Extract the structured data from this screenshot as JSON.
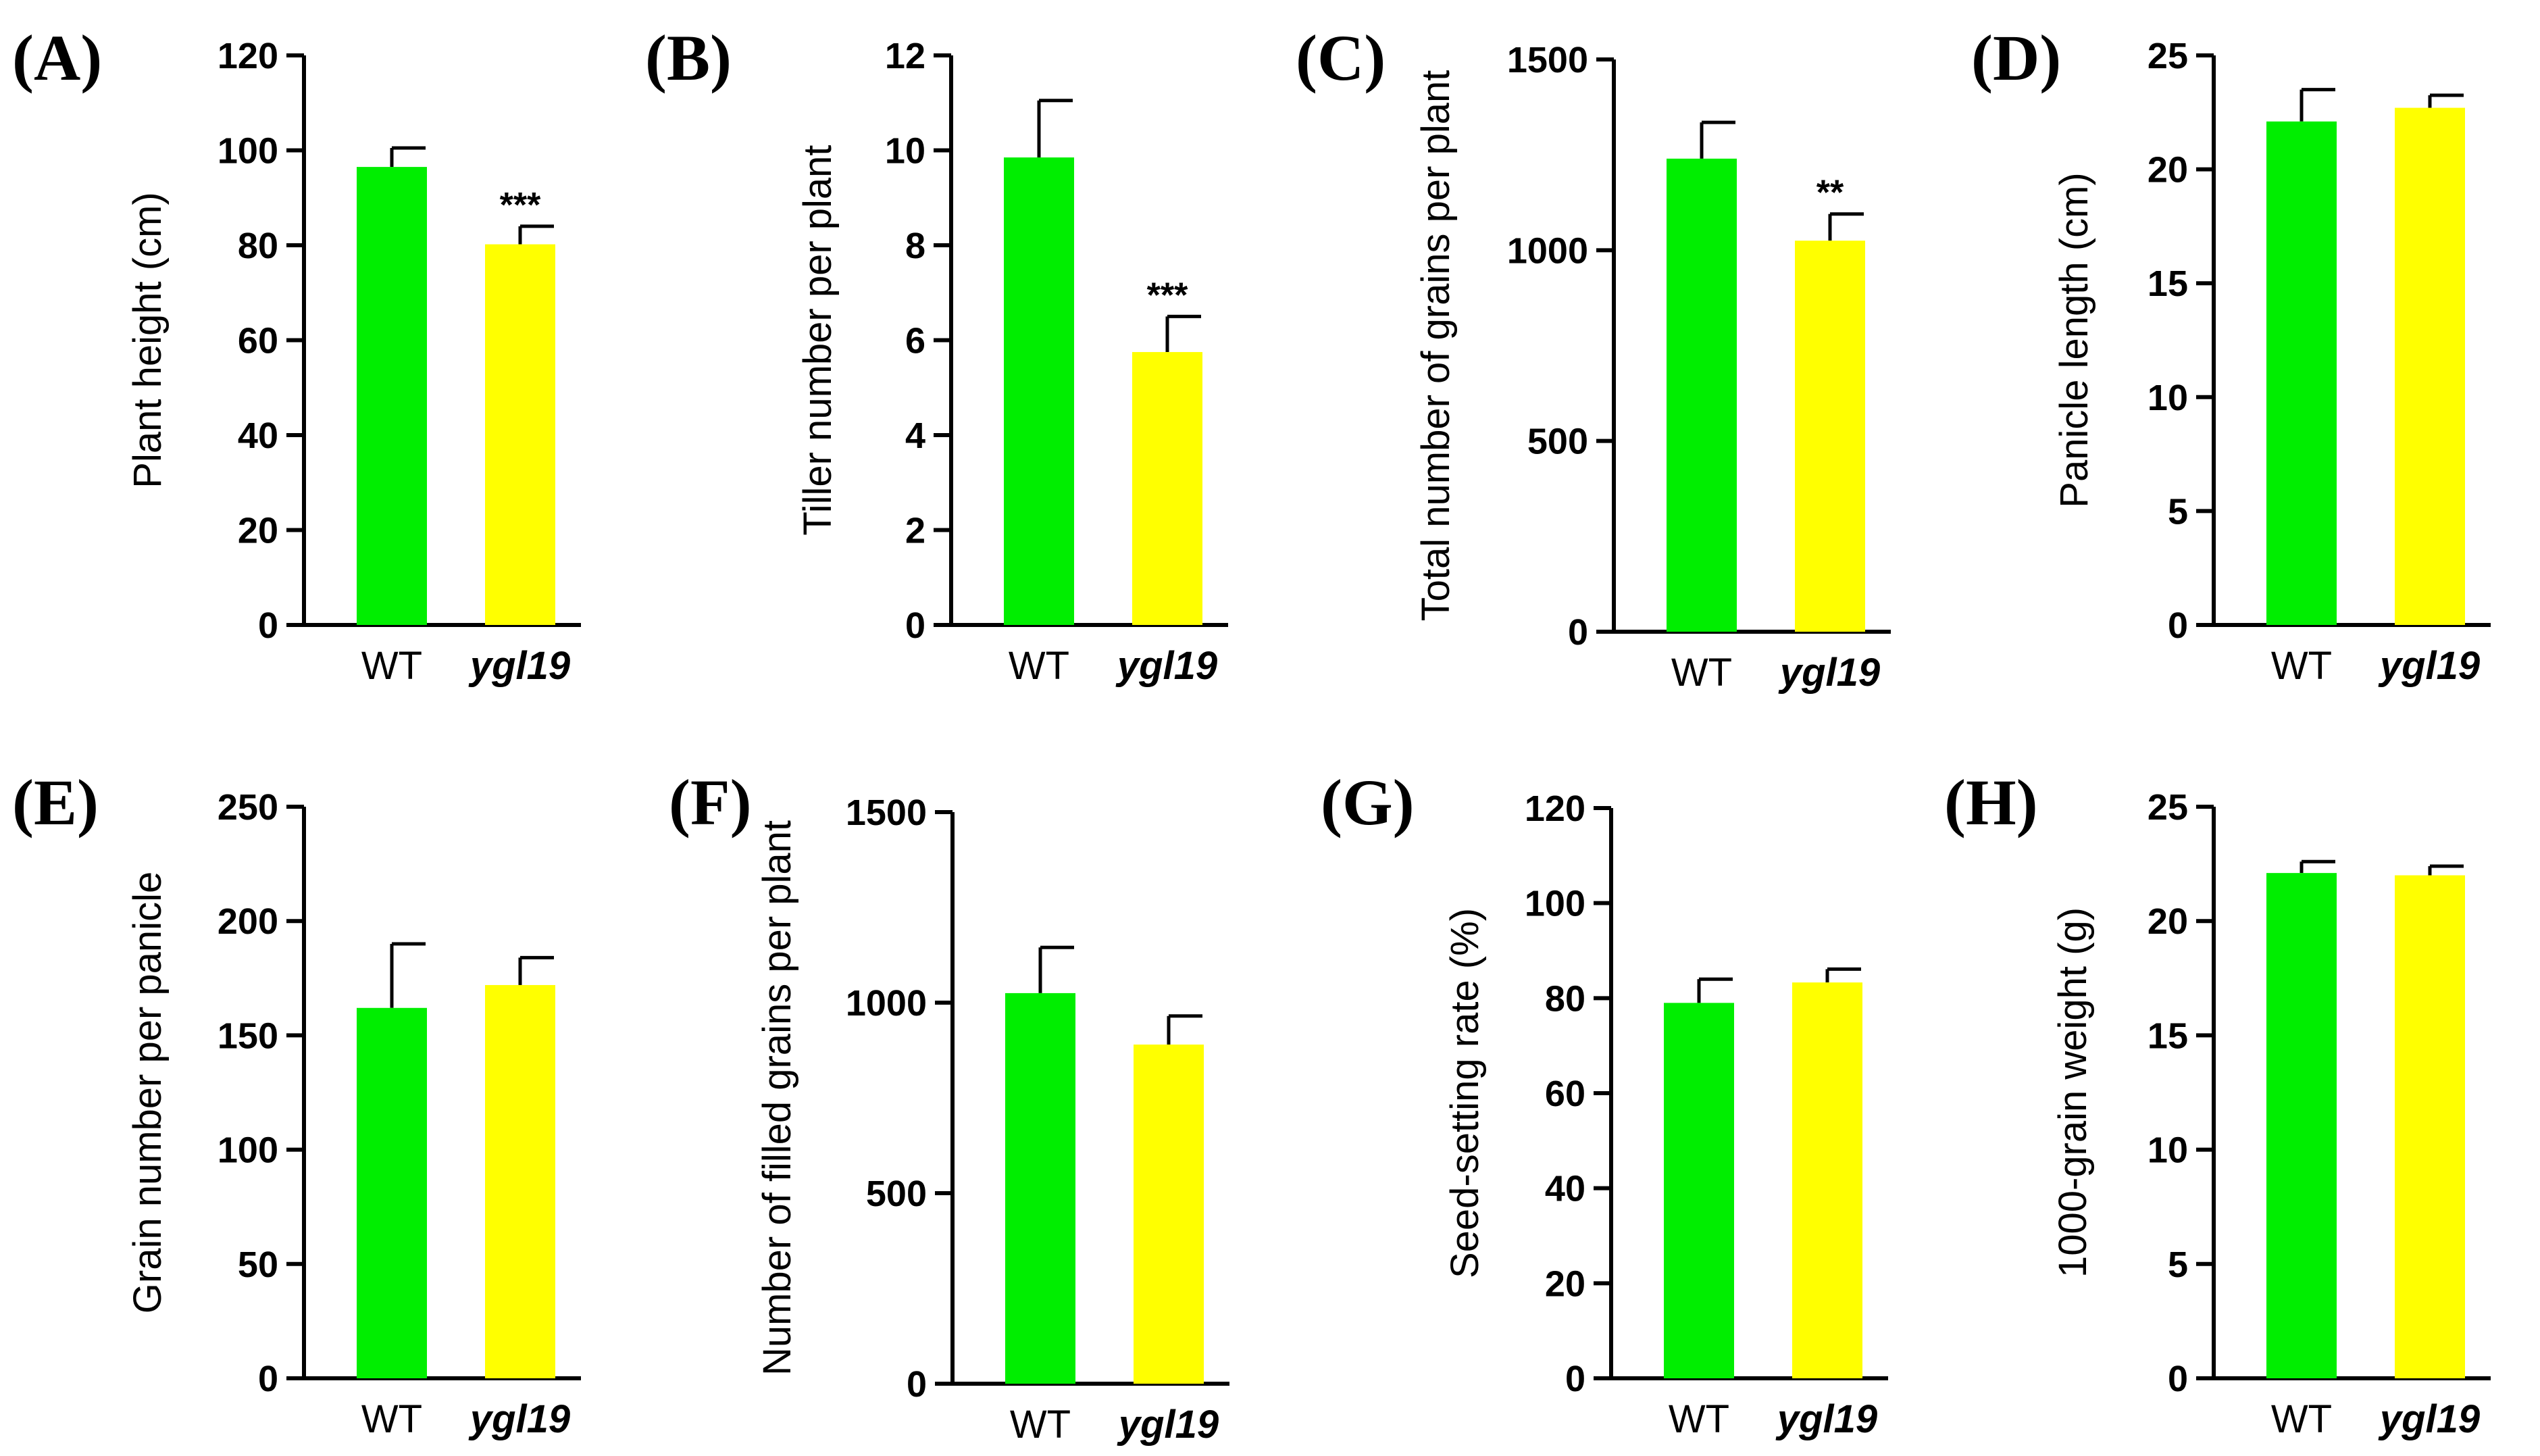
{
  "colors": {
    "wt": "#00ee00",
    "mutant": "#ffff00",
    "axis": "#000000"
  },
  "chart_data": [
    {
      "panel": "(A)",
      "type": "bar",
      "categories": [
        "WT",
        "ygl19"
      ],
      "values": [
        96.5,
        80.2
      ],
      "errors": [
        4,
        3.8
      ],
      "ylabel": "Plant height (cm)",
      "ylim": [
        0,
        120
      ],
      "yticks": [
        "0",
        "20",
        "40",
        "60",
        "80",
        "100",
        "120"
      ],
      "significance": [
        "",
        "***"
      ]
    },
    {
      "panel": "(B)",
      "type": "bar",
      "categories": [
        "WT",
        "ygl19"
      ],
      "values": [
        9.85,
        5.75
      ],
      "errors": [
        1.2,
        0.75
      ],
      "ylabel": "Tiller number per plant",
      "ylim": [
        0,
        12
      ],
      "yticks": [
        "0",
        "2",
        "4",
        "6",
        "8",
        "10",
        "12"
      ],
      "significance": [
        "",
        "***"
      ]
    },
    {
      "panel": "(C)",
      "type": "bar",
      "categories": [
        "WT",
        "ygl19"
      ],
      "values": [
        1240,
        1025
      ],
      "errors": [
        95,
        70
      ],
      "ylabel": "Total number of grains per plant",
      "ylim": [
        0,
        1500
      ],
      "yticks": [
        "0",
        "500",
        "1000",
        "1500"
      ],
      "significance": [
        "",
        "**"
      ]
    },
    {
      "panel": "(D)",
      "type": "bar",
      "categories": [
        "WT",
        "ygl19"
      ],
      "values": [
        22.1,
        22.7
      ],
      "errors": [
        1.4,
        0.55
      ],
      "ylabel": "Panicle length (cm)",
      "ylim": [
        0,
        25
      ],
      "yticks": [
        "0",
        "5",
        "10",
        "15",
        "20",
        "25"
      ],
      "significance": [
        "",
        ""
      ]
    },
    {
      "panel": "(E)",
      "type": "bar",
      "categories": [
        "WT",
        "ygl19"
      ],
      "values": [
        162,
        172
      ],
      "errors": [
        28,
        12
      ],
      "ylabel": "Grain number per panicle",
      "ylim": [
        0,
        250
      ],
      "yticks": [
        "0",
        "50",
        "100",
        "150",
        "200",
        "250"
      ],
      "significance": [
        "",
        ""
      ]
    },
    {
      "panel": "(F)",
      "type": "bar",
      "categories": [
        "WT",
        "ygl19"
      ],
      "values": [
        1025,
        890
      ],
      "errors": [
        120,
        75
      ],
      "ylabel": "Number of filled grains per plant",
      "ylim": [
        0,
        1500
      ],
      "yticks": [
        "0",
        "500",
        "1000",
        "1500"
      ],
      "significance": [
        "",
        ""
      ]
    },
    {
      "panel": "(G)",
      "type": "bar",
      "categories": [
        "WT",
        "ygl19"
      ],
      "values": [
        79,
        83.3
      ],
      "errors": [
        5,
        2.8
      ],
      "ylabel": "Seed-setting rate (%)",
      "ylim": [
        0,
        120
      ],
      "yticks": [
        "0",
        "20",
        "40",
        "60",
        "80",
        "100",
        "120"
      ],
      "significance": [
        "",
        ""
      ]
    },
    {
      "panel": "(H)",
      "type": "bar",
      "categories": [
        "WT",
        "ygl19"
      ],
      "values": [
        22.1,
        22.0
      ],
      "errors": [
        0.5,
        0.4
      ],
      "ylabel": "1000-grain weight (g)",
      "ylim": [
        0,
        25
      ],
      "yticks": [
        "0",
        "5",
        "10",
        "15",
        "20",
        "25"
      ],
      "significance": [
        "",
        ""
      ]
    }
  ]
}
